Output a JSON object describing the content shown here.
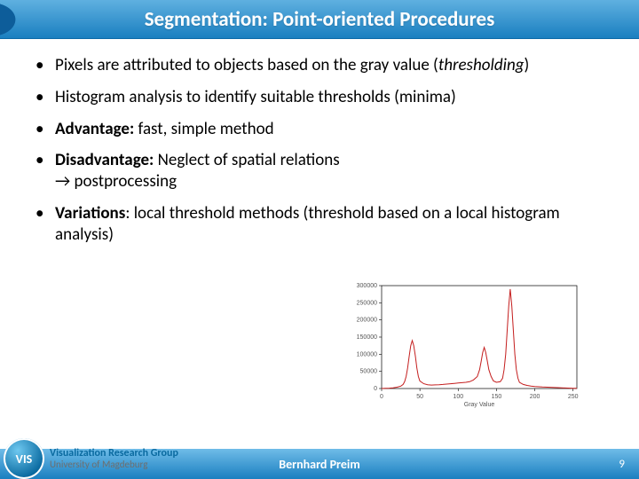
{
  "title": "Segmentation: Point-oriented Procedures",
  "bullets": {
    "b1a": "Pixels are attributed to objects based on the gray value (",
    "b1b": "thresholding",
    "b1c": ")",
    "b2": "Histogram analysis to identify suitable thresholds (minima)",
    "b3a": "Advantage:",
    "b3b": " fast, simple method",
    "b4a": "Disadvantage:",
    "b4b": " Neglect of spatial relations",
    "b4c": "→ postprocessing",
    "b5a": "Variations",
    "b5b": ": local threshold methods (threshold based on a local histogram analysis)"
  },
  "chart": {
    "type": "line",
    "xlabel": "Gray Value",
    "xlim": [
      0,
      255
    ],
    "ylim": [
      0,
      300000
    ],
    "xticks": [
      0,
      50,
      100,
      150,
      200,
      250
    ],
    "yticks": [
      0,
      50000,
      100000,
      150000,
      200000,
      250000,
      300000
    ],
    "ytick_labels": [
      "0",
      "50000",
      "100000",
      "150000",
      "200000",
      "250000",
      "300000"
    ],
    "series_color": "#c41e1e",
    "line_width": 1,
    "background_color": "#ffffff",
    "box_color": "#000000",
    "tick_color": "#000000",
    "label_color": "#555555",
    "label_fontsize": 7,
    "data": [
      [
        0,
        0
      ],
      [
        5,
        500
      ],
      [
        10,
        1000
      ],
      [
        15,
        2000
      ],
      [
        20,
        4000
      ],
      [
        25,
        7000
      ],
      [
        28,
        12000
      ],
      [
        30,
        20000
      ],
      [
        32,
        35000
      ],
      [
        34,
        60000
      ],
      [
        36,
        95000
      ],
      [
        38,
        125000
      ],
      [
        40,
        140000
      ],
      [
        42,
        125000
      ],
      [
        44,
        95000
      ],
      [
        46,
        60000
      ],
      [
        48,
        35000
      ],
      [
        50,
        22000
      ],
      [
        55,
        14000
      ],
      [
        60,
        11000
      ],
      [
        65,
        10000
      ],
      [
        70,
        10500
      ],
      [
        75,
        11000
      ],
      [
        80,
        12000
      ],
      [
        85,
        13000
      ],
      [
        90,
        14000
      ],
      [
        95,
        15000
      ],
      [
        100,
        16000
      ],
      [
        105,
        17000
      ],
      [
        110,
        18000
      ],
      [
        115,
        20000
      ],
      [
        120,
        25000
      ],
      [
        125,
        35000
      ],
      [
        128,
        55000
      ],
      [
        130,
        80000
      ],
      [
        132,
        105000
      ],
      [
        134,
        120000
      ],
      [
        136,
        105000
      ],
      [
        138,
        80000
      ],
      [
        140,
        55000
      ],
      [
        143,
        35000
      ],
      [
        146,
        22000
      ],
      [
        150,
        18000
      ],
      [
        155,
        20000
      ],
      [
        158,
        30000
      ],
      [
        160,
        55000
      ],
      [
        162,
        100000
      ],
      [
        164,
        170000
      ],
      [
        166,
        240000
      ],
      [
        168,
        290000
      ],
      [
        170,
        240000
      ],
      [
        172,
        170000
      ],
      [
        174,
        100000
      ],
      [
        176,
        55000
      ],
      [
        178,
        30000
      ],
      [
        180,
        18000
      ],
      [
        185,
        12000
      ],
      [
        190,
        9000
      ],
      [
        195,
        7000
      ],
      [
        200,
        6000
      ],
      [
        210,
        4500
      ],
      [
        220,
        3500
      ],
      [
        230,
        2500
      ],
      [
        240,
        1500
      ],
      [
        250,
        800
      ],
      [
        255,
        400
      ]
    ]
  },
  "footer": {
    "author": "Bernhard Preim",
    "page": "9"
  },
  "logo": {
    "badge": "VIS",
    "line1": "Visualization Research Group",
    "line2": "University of Magdeburg"
  },
  "colors": {
    "header_grad_top": "#5fb0e0",
    "header_grad_bot": "#1a7fc0",
    "footer_grad_top": "#6fbce8",
    "footer_grad_bot": "#1a7fc0"
  }
}
